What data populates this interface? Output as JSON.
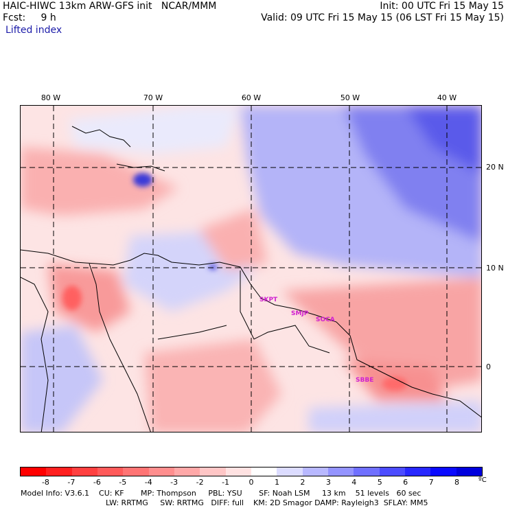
{
  "header": {
    "model": "HAIC-HIWC 13km ARW-GFS init",
    "org": "NCAR/MMM",
    "init": "Init: 00 UTC Fri 15 May 15",
    "fcst_label": "Fcst:",
    "fcst_value": "9 h",
    "valid": "Valid: 09 UTC Fri 15 May 15 (06 LST Fri 15 May 15)",
    "variable": "Lifted index"
  },
  "map": {
    "longitude_labels": [
      "80 W",
      "70 W",
      "60 W",
      "50 W",
      "40 W"
    ],
    "latitude_labels": [
      "20 N",
      "10 N",
      "0"
    ],
    "cities": [
      "SKPT",
      "SMJP",
      "SOCA",
      "SBBE"
    ]
  },
  "colorbar": {
    "unit": "ºC",
    "ticks": [
      "-8",
      "-7",
      "-6",
      "-5",
      "-4",
      "-3",
      "-2",
      "-1",
      "0",
      "1",
      "2",
      "3",
      "4",
      "5",
      "6",
      "7",
      "8"
    ],
    "colors": [
      "#ff0000",
      "#ff2020",
      "#ff4040",
      "#ff5a5a",
      "#ff7474",
      "#ff8e8e",
      "#ffa8a8",
      "#ffc6c6",
      "#ffe2e2",
      "#ffffff",
      "#dcdcff",
      "#b8b8ff",
      "#9494ff",
      "#7070ff",
      "#4c4cff",
      "#2828ff",
      "#0a0aff",
      "#0000dd"
    ]
  },
  "footer": {
    "line1": "Model Info: V3.6.1    CU: KF       MP: Thompson     PBL: YSU       SF: Noah LSM     13 km    51 levels   60 sec",
    "line2": "LW: RRTMG     SW: RRTMG   DIFF: full    KM: 2D Smagor DAMP: Rayleigh3  SFLAY: MM5"
  }
}
